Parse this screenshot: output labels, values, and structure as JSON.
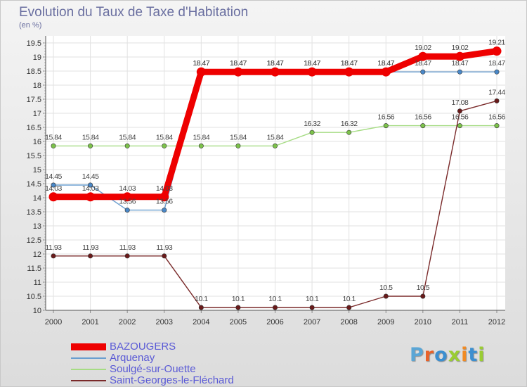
{
  "title": "Evolution du Taux de Taxe d'Habitation",
  "subtitle": "(en %)",
  "brand": {
    "text": "Proxiti",
    "colors": [
      "#5aa6d6",
      "#e8622a",
      "#3c8fd0",
      "#9acd32",
      "#f08a24",
      "#3c8fd0",
      "#9acd32"
    ]
  },
  "chart_data": {
    "type": "line",
    "x": [
      "2000",
      "2001",
      "2002",
      "2003",
      "2004",
      "2005",
      "2006",
      "2007",
      "2008",
      "2009",
      "2010",
      "2011",
      "2012"
    ],
    "ylim": [
      10,
      19.5
    ],
    "yticks": [
      "10",
      "10.5",
      "11",
      "11.5",
      "12",
      "12.5",
      "13",
      "13.5",
      "14",
      "14.5",
      "15",
      "15.5",
      "16",
      "16.5",
      "17",
      "17.5",
      "18",
      "18.5",
      "19",
      "19.5"
    ],
    "grid": true,
    "legend_position": "bottom-left",
    "series": [
      {
        "name": "Arquenay",
        "color": "#6a9fd0",
        "marker": "#4a88c8",
        "values": [
          14.45,
          14.45,
          13.56,
          13.56,
          18.47,
          18.47,
          18.47,
          18.47,
          18.47,
          18.47,
          18.47,
          18.47,
          18.47
        ],
        "labels": [
          "14.45",
          "14.45",
          "13.56",
          "13.56",
          "18.47",
          "18.47",
          "18.47",
          "18.47",
          "18.47",
          "18.47",
          "18.47",
          "18.47",
          "18.47"
        ]
      },
      {
        "name": "Soulgé-sur-Ouette",
        "color": "#a6dc84",
        "marker": "#7cc24a",
        "values": [
          15.84,
          15.84,
          15.84,
          15.84,
          15.84,
          15.84,
          15.84,
          16.32,
          16.32,
          16.56,
          16.56,
          16.56,
          16.56
        ],
        "labels": [
          "15.84",
          "15.84",
          "15.84",
          "15.84",
          "15.84",
          "15.84",
          "15.84",
          "16.32",
          "16.32",
          "16.56",
          "16.56",
          "16.56",
          "16.56"
        ]
      },
      {
        "name": "Saint-Georges-le-Fléchard",
        "color": "#7a2a2a",
        "marker": "#6a1a1a",
        "values": [
          11.93,
          11.93,
          11.93,
          11.93,
          10.1,
          10.1,
          10.1,
          10.1,
          10.1,
          10.5,
          10.5,
          17.08,
          17.44
        ],
        "labels": [
          "11.93",
          "11.93",
          "11.93",
          "11.93",
          "10.1",
          "10.1",
          "10.1",
          "10.1",
          "10.1",
          "10.5",
          "10.5",
          "17.08",
          "17.44"
        ]
      },
      {
        "name": "BAZOUGERS",
        "color": "#ee0000",
        "marker": "#ee0000",
        "values": [
          14.03,
          14.03,
          14.03,
          14.03,
          18.47,
          18.47,
          18.47,
          18.47,
          18.47,
          18.47,
          19.02,
          19.02,
          19.21
        ],
        "labels": [
          "14.03",
          "14.03",
          "14.03",
          "14.03",
          "18.47",
          "18.47",
          "18.47",
          "18.47",
          "18.47",
          "18.47",
          "19.02",
          "19.02",
          "19.21"
        ]
      }
    ]
  }
}
